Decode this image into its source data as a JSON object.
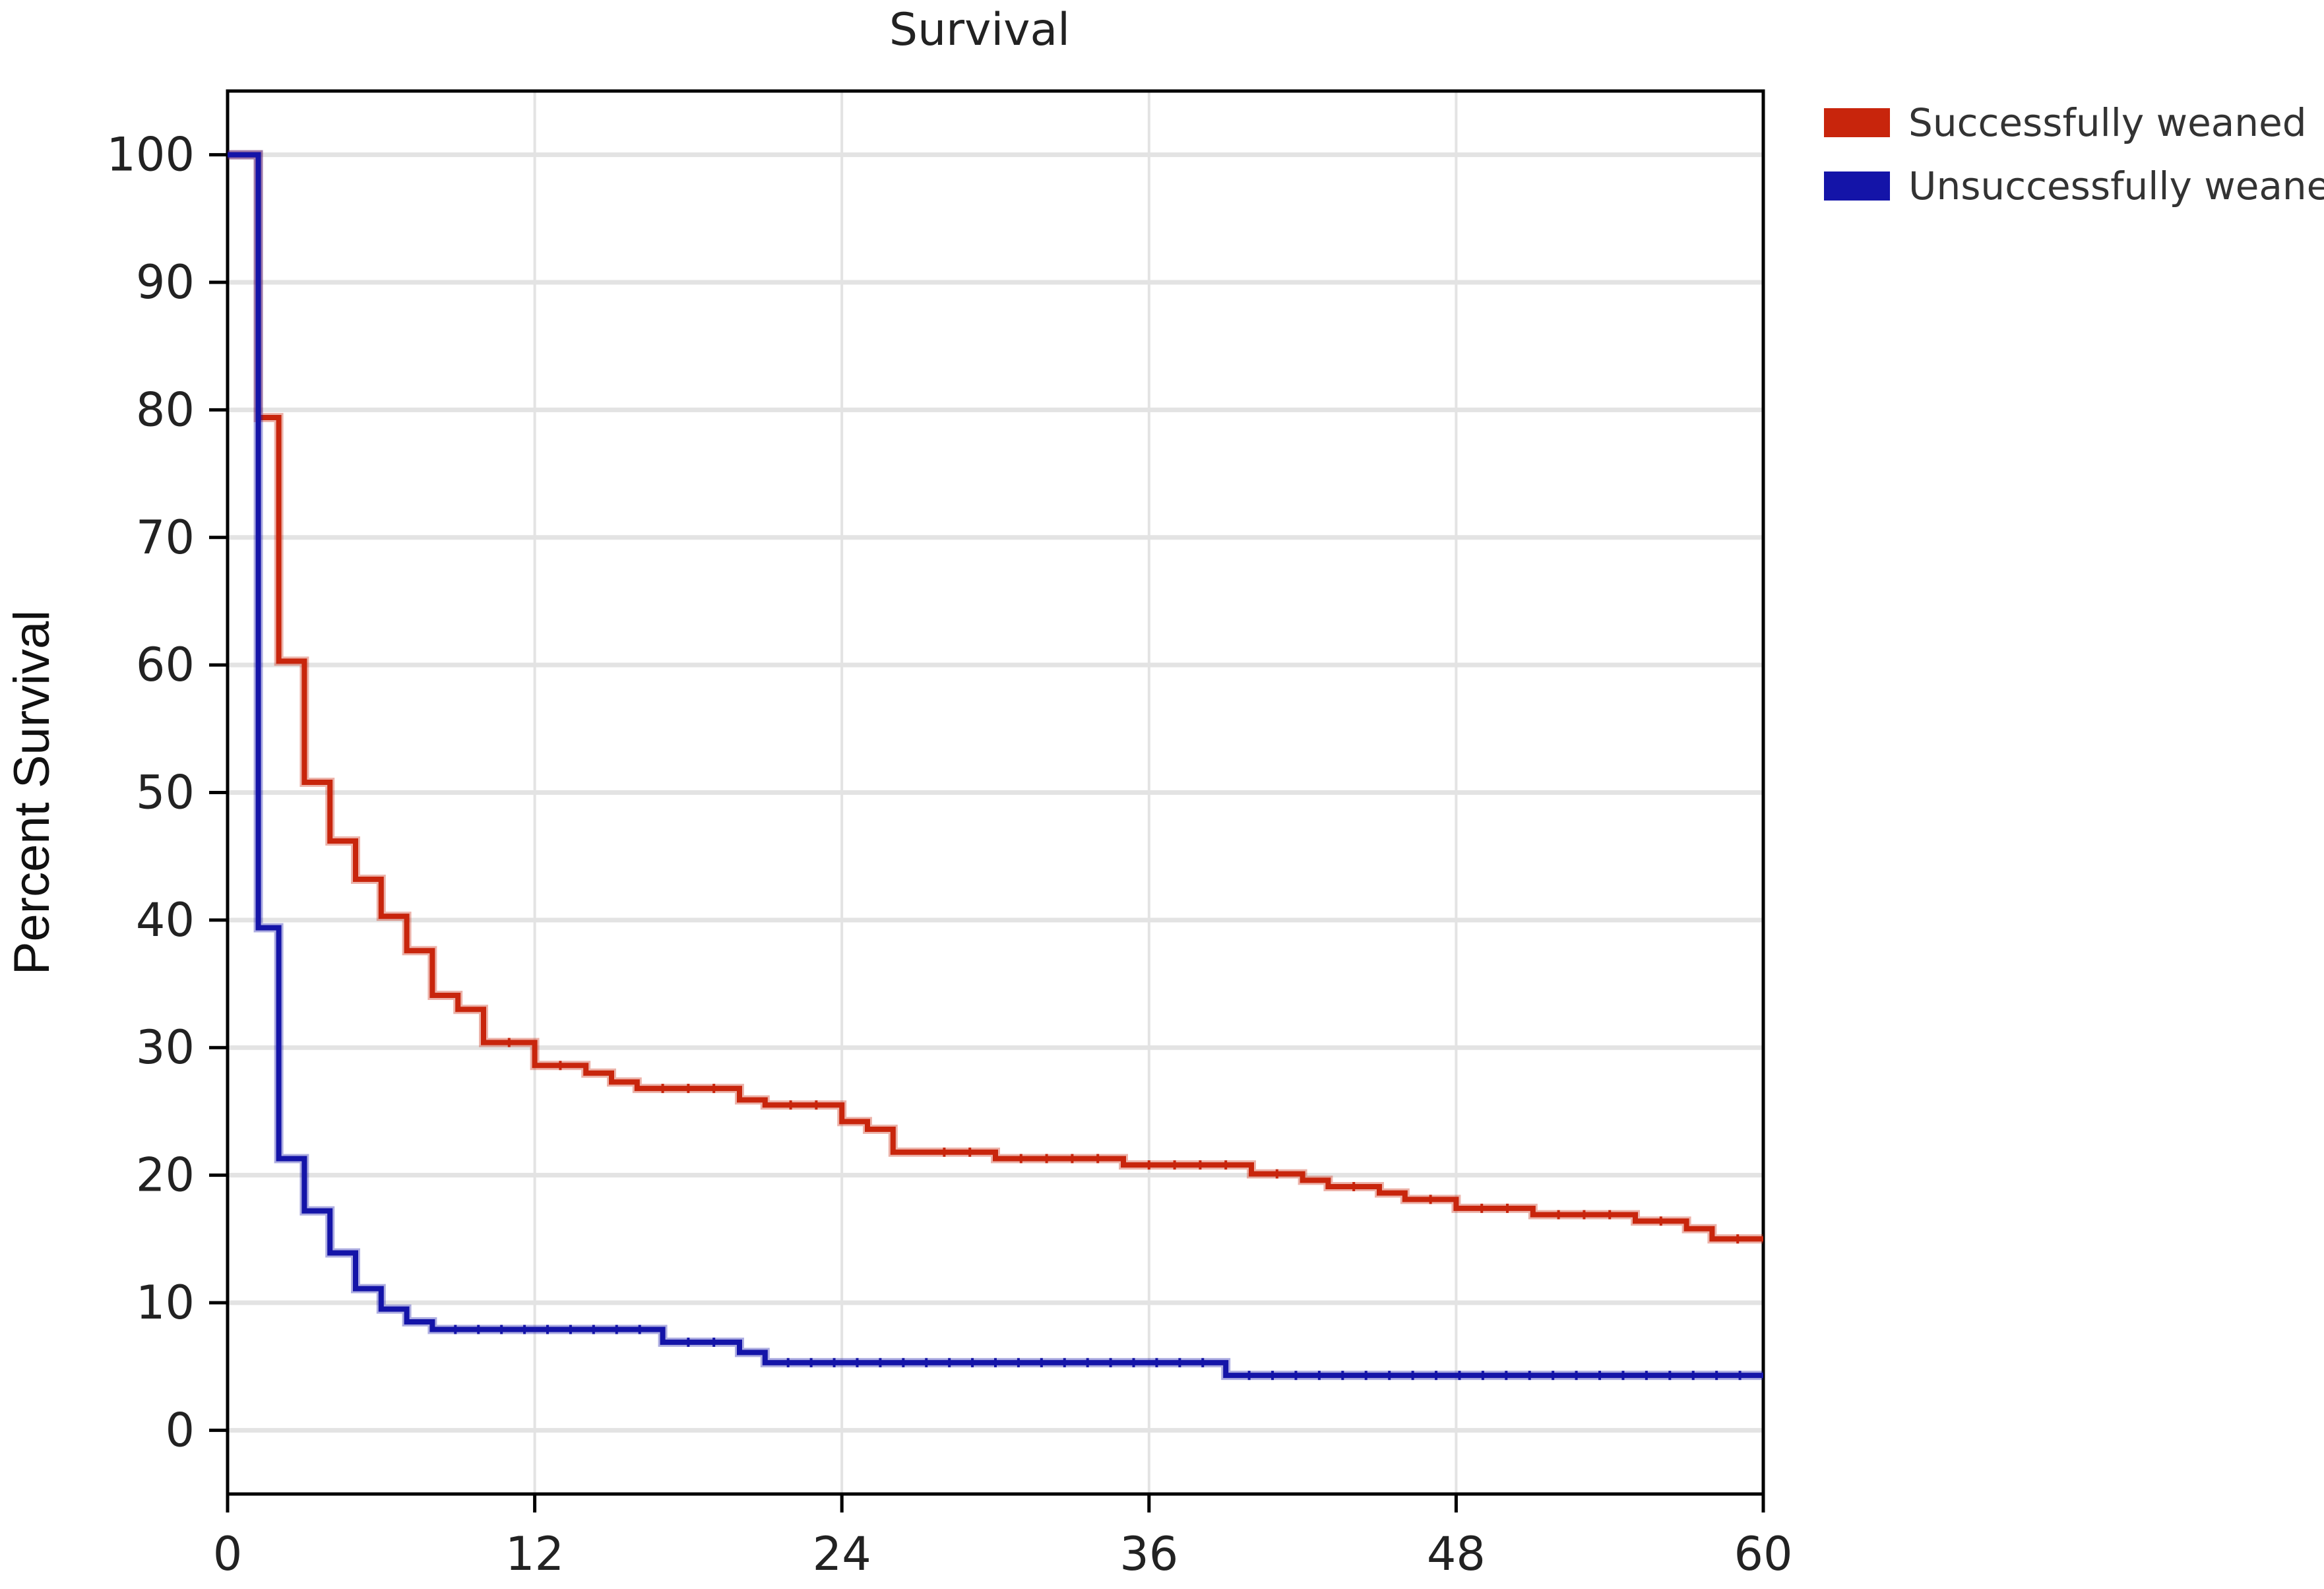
{
  "chart_data": {
    "type": "line",
    "step": true,
    "title": "Survival",
    "xlabel": "",
    "ylabel": "Percent Survival",
    "xlim": [
      0,
      60
    ],
    "ylim": [
      -5,
      105
    ],
    "x_ticks": [
      "0",
      "12",
      "24",
      "36",
      "48",
      "60"
    ],
    "y_ticks": [
      "0",
      "10",
      "20",
      "30",
      "40",
      "50",
      "60",
      "70",
      "80",
      "90",
      "100"
    ],
    "grid": true,
    "legend_position": "outside-top-right",
    "series": [
      {
        "name": "Successfully weaned",
        "color": "#c8250c",
        "x": [
          0,
          1.2,
          2,
          3,
          4,
          5,
          6,
          7,
          8,
          9,
          10,
          12,
          14,
          15,
          16,
          20,
          21,
          24,
          25,
          26,
          27,
          30,
          35,
          40,
          42,
          43,
          45,
          46,
          48,
          51,
          55,
          57,
          58,
          60
        ],
        "y": [
          100,
          79.4,
          60.3,
          50.8,
          46.2,
          43.2,
          40.3,
          37.6,
          34.1,
          33.0,
          30.4,
          28.6,
          28.0,
          27.3,
          26.8,
          25.9,
          25.5,
          24.2,
          23.6,
          21.8,
          21.8,
          21.3,
          20.8,
          20.1,
          19.6,
          19.1,
          18.6,
          18.1,
          17.4,
          16.9,
          16.4,
          15.8,
          15.0,
          15.0
        ]
      },
      {
        "name": "Unsuccessfully weaned",
        "color": "#1414a8",
        "x": [
          0,
          1.2,
          2,
          3,
          4,
          5,
          6,
          7,
          8,
          17,
          20,
          21,
          39,
          60
        ],
        "y": [
          100,
          39.4,
          21.3,
          17.2,
          13.9,
          11.1,
          9.5,
          8.5,
          7.9,
          6.9,
          6.1,
          5.3,
          4.3,
          4.3
        ]
      }
    ]
  }
}
